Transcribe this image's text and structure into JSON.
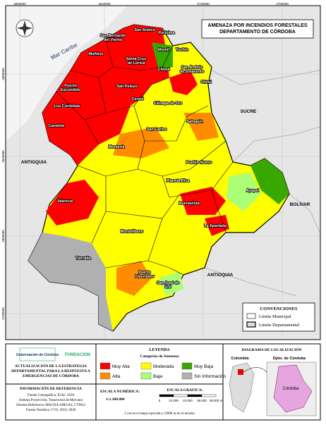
{
  "map": {
    "title": "AMENAZA POR INCENDIOS FORESTALES DEPARTAMENTO DE CÓRDOBA",
    "x_coordinates": [
      "4600000",
      "4640000",
      "4720000",
      "4760000"
    ],
    "y_coordinates": [
      "2880000",
      "2840000",
      "2800000",
      "2760000"
    ],
    "regions": [
      "Mar Caribe",
      "SUCRE",
      "ANTIOQUIA",
      "ANTIOQUIA",
      "BOLÍVAR"
    ],
    "municipalities": [
      "San Bernardo del Viento",
      "San Antero",
      "Purísima",
      "Moñitos",
      "Santa Cruz de Lorica",
      "Momil",
      "Tuchín",
      "San Andrés de Sotavento",
      "Chimá",
      "Chinú",
      "Puerto Escondido",
      "San Pelayo",
      "Los Córdobas",
      "Cereté",
      "Ciénaga de Oro",
      "Canalete",
      "San Carlos",
      "Sahagún",
      "Montería",
      "Pueblo Nuevo",
      "Planeta Rica",
      "Buenavista",
      "La Apartada",
      "Ayapel",
      "Valencia",
      "Montelíbano",
      "Tierralta",
      "Puerto Libertador",
      "San José de Uré"
    ],
    "conventions": {
      "title": "CONVENCIONES",
      "items": [
        "Límite Municipal",
        "Límite Departamental"
      ]
    }
  },
  "footer": {
    "logo": "Gobernación de Córdoba",
    "foundation": "FUNDACIÓN",
    "project": "ACTUALIZACIÓN DE LA ESTRATEGIA DEPARTAMENTAL PARA LA RESPUESTA A EMERGENCIAS DE CÓRDOBA",
    "reference_title": "INFORMACIÓN DE REFERENCIA",
    "reference": [
      "Fuente Cartográfica: IGAC 2018",
      "Sistema Proyección: Transversal de Mercator",
      "Sistema Referencia: MAGNA-SIRGAS, CTM12",
      "Fuente Temática: CVS, 2019; 2020"
    ],
    "legend": {
      "title": "LEYENDA",
      "subtitle": "Categorías de Amenaza",
      "items": [
        {
          "label": "Muy Alta",
          "color": "#ff0000"
        },
        {
          "label": "Moderada",
          "color": "#ffff00"
        },
        {
          "label": "Muy Baja",
          "color": "#38a800"
        },
        {
          "label": "Alta",
          "color": "#ff8c00"
        },
        {
          "label": "Baja",
          "color": "#aaff77"
        },
        {
          "label": "Sin Información",
          "color": "#b0b0b0"
        }
      ]
    },
    "numeric_scale_title": "ESCALA NUMÉRICA:",
    "numeric_scale": "1:1.200.000",
    "graphic_scale_title": "ESCALA GRAFICA:",
    "graphic_scale": [
      "0",
      "12.000",
      "24.000",
      "36.000",
      "48.000 m"
    ],
    "scale_note": "1 cm en el mapa equivale a 12000 m en el terreno",
    "location_title": "DIAGRAMA DE LOCALIZACIÓN",
    "location_labels": [
      "Colombia",
      "Dpto. de Córdoba",
      "Córdoba"
    ]
  }
}
